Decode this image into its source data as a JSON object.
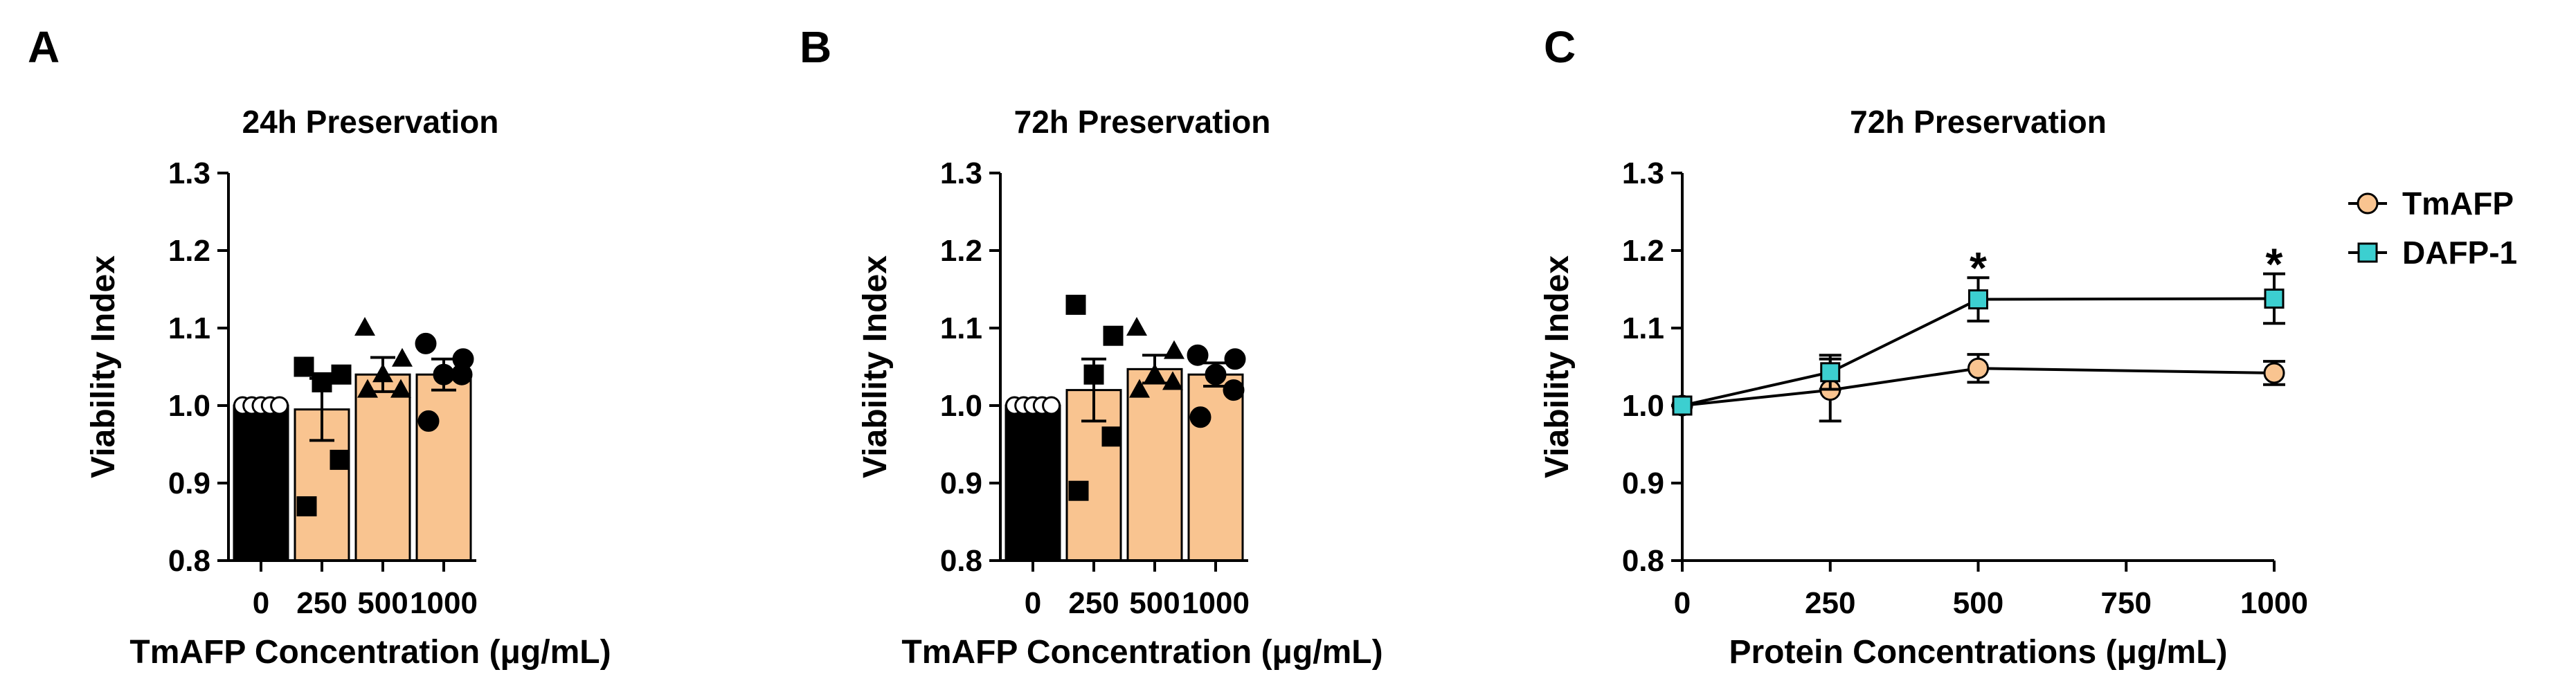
{
  "colors": {
    "control": "#000000",
    "tmafp": "#f9c490",
    "dafp": "#3ccfd0",
    "stroke": "#000000"
  },
  "chart_data": [
    {
      "panel": "A",
      "type": "bar",
      "title": "24h Preservation",
      "xlabel": "TmAFP Concentration (μg/mL)",
      "ylabel": "Viability Index",
      "ylim": [
        0.8,
        1.3
      ],
      "yticks": [
        "0.8",
        "0.9",
        "1.0",
        "1.1",
        "1.2",
        "1.3"
      ],
      "categories": [
        "0",
        "250",
        "500",
        "1000"
      ],
      "values": [
        1.0,
        0.995,
        1.04,
        1.04
      ],
      "errors": [
        0,
        0.04,
        0.022,
        0.02
      ],
      "marker": [
        "circle-open",
        "square",
        "triangle",
        "circle"
      ],
      "points": [
        [
          1.0,
          1.0,
          1.0,
          1.0,
          1.0
        ],
        [
          1.05,
          1.04,
          1.03,
          0.93,
          0.87
        ],
        [
          1.1,
          1.06,
          1.04,
          1.02,
          1.02
        ],
        [
          1.08,
          1.06,
          1.04,
          1.04,
          0.98
        ]
      ]
    },
    {
      "panel": "B",
      "type": "bar",
      "title": "72h Preservation",
      "xlabel": "TmAFP Concentration (μg/mL)",
      "ylabel": "Viability Index",
      "ylim": [
        0.8,
        1.3
      ],
      "yticks": [
        "0.8",
        "0.9",
        "1.0",
        "1.1",
        "1.2",
        "1.3"
      ],
      "categories": [
        "0",
        "250",
        "500",
        "1000"
      ],
      "values": [
        1.0,
        1.02,
        1.047,
        1.04
      ],
      "errors": [
        0,
        0.04,
        0.018,
        0.015
      ],
      "marker": [
        "circle-open",
        "square",
        "triangle",
        "circle"
      ],
      "points": [
        [
          1.0,
          1.0,
          1.0,
          1.0,
          1.0
        ],
        [
          1.13,
          1.09,
          1.04,
          0.96,
          0.89
        ],
        [
          1.1,
          1.07,
          1.04,
          1.03,
          1.02
        ],
        [
          1.065,
          1.06,
          1.04,
          1.02,
          0.985
        ]
      ]
    },
    {
      "panel": "C",
      "type": "line",
      "title": "72h Preservation",
      "xlabel": "Protein Concentrations (μg/mL)",
      "ylabel": "Viability Index",
      "ylim": [
        0.8,
        1.3
      ],
      "xlim": [
        0,
        1000
      ],
      "yticks": [
        "0.8",
        "0.9",
        "1.0",
        "1.1",
        "1.2",
        "1.3"
      ],
      "xticks": [
        0,
        250,
        500,
        750,
        1000
      ],
      "x": [
        0,
        250,
        500,
        1000
      ],
      "series": [
        {
          "name": "TmAFP",
          "marker": "circle",
          "values": [
            1.0,
            1.02,
            1.048,
            1.042
          ],
          "errors": [
            0,
            0.04,
            0.018,
            0.015
          ]
        },
        {
          "name": "DAFP-1",
          "marker": "square",
          "values": [
            1.0,
            1.043,
            1.137,
            1.138
          ],
          "errors": [
            0,
            0.022,
            0.028,
            0.032
          ]
        }
      ],
      "annotations": [
        {
          "x": 500,
          "text": "*"
        },
        {
          "x": 1000,
          "text": "*"
        }
      ],
      "legend": "right"
    }
  ]
}
